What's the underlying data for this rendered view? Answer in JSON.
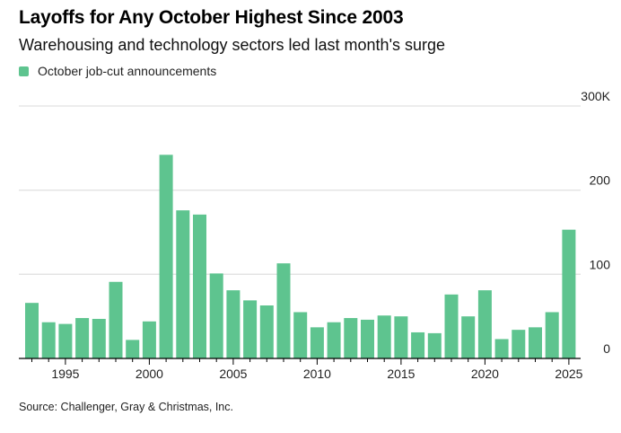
{
  "title": "Layoffs for Any October Highest Since 2003",
  "subtitle": "Warehousing and technology sectors led last month's surge",
  "legend": [
    {
      "label": "October job-cut announcements",
      "color": "#5ec48f"
    }
  ],
  "source": "Source: Challenger, Gray & Christmas, Inc.",
  "chart_data": {
    "type": "bar",
    "title": "Layoffs for Any October Highest Since 2003",
    "subtitle": "Warehousing and technology sectors led last month's surge",
    "xlabel": "",
    "ylabel": "",
    "ylim": [
      0,
      300000
    ],
    "grid": true,
    "legend_position": "top-left",
    "y_axis_side": "right",
    "y_ticks": [
      0,
      100000,
      200000,
      300000
    ],
    "y_tick_labels": [
      "0",
      "100",
      "200",
      "300K"
    ],
    "x_ticks": [
      1995,
      2000,
      2005,
      2010,
      2015,
      2020,
      2025
    ],
    "x_tick_labels": [
      "1995",
      "2000",
      "2005",
      "2010",
      "2015",
      "2020",
      "2025"
    ],
    "categories": [
      1993,
      1994,
      1995,
      1996,
      1997,
      1998,
      1999,
      2000,
      2001,
      2002,
      2003,
      2004,
      2005,
      2006,
      2007,
      2008,
      2009,
      2010,
      2011,
      2012,
      2013,
      2014,
      2015,
      2016,
      2017,
      2018,
      2019,
      2020,
      2021,
      2022,
      2023,
      2024,
      2025
    ],
    "series": [
      {
        "name": "October job-cut announcements",
        "color": "#5ec48f",
        "values": [
          66000,
          43000,
          41000,
          48000,
          47000,
          91000,
          22000,
          44000,
          242000,
          176000,
          171000,
          101000,
          81000,
          69000,
          63000,
          113000,
          55000,
          37000,
          43000,
          48000,
          46000,
          51000,
          50000,
          31000,
          30000,
          76000,
          50000,
          81000,
          23000,
          34000,
          37000,
          55000,
          153000
        ]
      }
    ]
  }
}
